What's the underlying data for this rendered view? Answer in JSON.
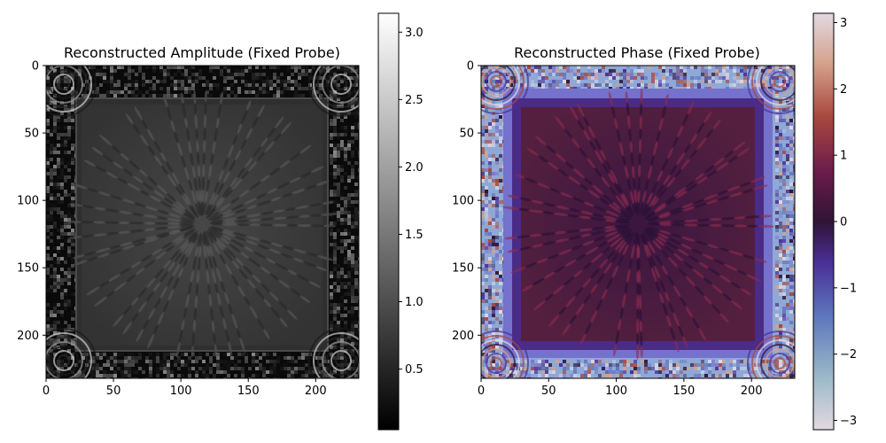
{
  "chart_data": [
    {
      "type": "heatmap",
      "title": "Reconstructed Amplitude (Fixed Probe)",
      "xlabel": "",
      "ylabel": "",
      "xlim": [
        0,
        232
      ],
      "ylim": [
        232,
        0
      ],
      "xticks": [
        0,
        50,
        100,
        150,
        200
      ],
      "yticks": [
        0,
        50,
        100,
        150,
        200
      ],
      "colormap": "gray",
      "colorbar": {
        "range": [
          0.05,
          3.14
        ],
        "ticks": [
          "0.5",
          "1.0",
          "1.5",
          "2.0",
          "2.5",
          "3.0"
        ],
        "tick_values": [
          0.5,
          1.0,
          1.5,
          2.0,
          2.5,
          3.0
        ]
      },
      "description_values": {
        "interior_level": 0.55,
        "border_level": 0.25,
        "frame_start": 25,
        "frame_end": 207
      }
    },
    {
      "type": "heatmap",
      "title": "Reconstructed Phase (Fixed Probe)",
      "xlabel": "",
      "ylabel": "",
      "xlim": [
        0,
        232
      ],
      "ylim": [
        232,
        0
      ],
      "xticks": [
        0,
        50,
        100,
        150,
        200
      ],
      "yticks": [
        0,
        50,
        100,
        150,
        200
      ],
      "colormap": "twilight_shifted",
      "colorbar": {
        "range": [
          -3.14,
          3.14
        ],
        "ticks": [
          "3",
          "2",
          "1",
          "0",
          "−1",
          "−2",
          "−3"
        ],
        "tick_values": [
          3,
          2,
          1,
          0,
          -1,
          -2,
          -3
        ]
      },
      "description_values": {
        "interior_level": 0.3,
        "border_level": -1.5,
        "frame_start": 25,
        "frame_end": 207
      }
    }
  ],
  "colors": {
    "amp_dark": "#0a0a0a",
    "amp_interior": "#3b3b3b",
    "phase_dark": "#2a1233",
    "phase_interior": "#5a1f44",
    "phase_border": "#7b78c9",
    "phase_edge": "#c9d3e0",
    "phase_stripe": "#c85a3a"
  }
}
